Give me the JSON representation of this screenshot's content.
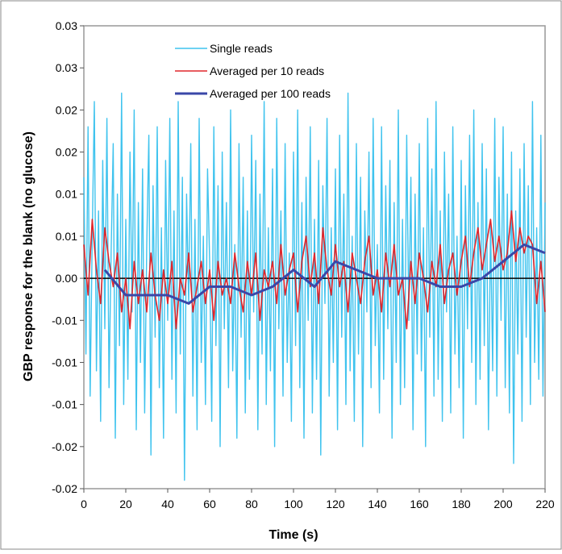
{
  "chart_data": {
    "type": "line",
    "xlabel": "Time (s)",
    "ylabel": "GBP response for the blank (no glucose)",
    "xlim": [
      0,
      220
    ],
    "xticks": [
      0,
      20,
      40,
      60,
      80,
      100,
      120,
      140,
      160,
      180,
      200,
      220
    ],
    "ylim": [
      -0.025,
      0.03
    ],
    "yticks": [
      {
        "value": 0.03,
        "label": "0.03"
      },
      {
        "value": 0.025,
        "label": "0.03"
      },
      {
        "value": 0.02,
        "label": "0.02"
      },
      {
        "value": 0.015,
        "label": "0.02"
      },
      {
        "value": 0.01,
        "label": "0.01"
      },
      {
        "value": 0.005,
        "label": "0.01"
      },
      {
        "value": 0,
        "label": "0.00"
      },
      {
        "value": -0.005,
        "label": "-0.01"
      },
      {
        "value": -0.01,
        "label": "-0.01"
      },
      {
        "value": -0.015,
        "label": "-0.01"
      },
      {
        "value": -0.02,
        "label": "-0.02"
      },
      {
        "value": -0.025,
        "label": "-0.02"
      }
    ],
    "legend": "upper-left",
    "series": [
      {
        "name": "Single reads",
        "color": "#3fc3ee",
        "x": [
          0,
          1,
          2,
          3,
          4,
          5,
          6,
          7,
          8,
          9,
          10,
          11,
          12,
          13,
          14,
          15,
          16,
          17,
          18,
          19,
          20,
          21,
          22,
          23,
          24,
          25,
          26,
          27,
          28,
          29,
          30,
          31,
          32,
          33,
          34,
          35,
          36,
          37,
          38,
          39,
          40,
          41,
          42,
          43,
          44,
          45,
          46,
          47,
          48,
          49,
          50,
          51,
          52,
          53,
          54,
          55,
          56,
          57,
          58,
          59,
          60,
          61,
          62,
          63,
          64,
          65,
          66,
          67,
          68,
          69,
          70,
          71,
          72,
          73,
          74,
          75,
          76,
          77,
          78,
          79,
          80,
          81,
          82,
          83,
          84,
          85,
          86,
          87,
          88,
          89,
          90,
          91,
          92,
          93,
          94,
          95,
          96,
          97,
          98,
          99,
          100,
          101,
          102,
          103,
          104,
          105,
          106,
          107,
          108,
          109,
          110,
          111,
          112,
          113,
          114,
          115,
          116,
          117,
          118,
          119,
          120,
          121,
          122,
          123,
          124,
          125,
          126,
          127,
          128,
          129,
          130,
          131,
          132,
          133,
          134,
          135,
          136,
          137,
          138,
          139,
          140,
          141,
          142,
          143,
          144,
          145,
          146,
          147,
          148,
          149,
          150,
          151,
          152,
          153,
          154,
          155,
          156,
          157,
          158,
          159,
          160,
          161,
          162,
          163,
          164,
          165,
          166,
          167,
          168,
          169,
          170,
          171,
          172,
          173,
          174,
          175,
          176,
          177,
          178,
          179,
          180,
          181,
          182,
          183,
          184,
          185,
          186,
          187,
          188,
          189,
          190,
          191,
          192,
          193,
          194,
          195,
          196,
          197,
          198,
          199,
          200,
          201,
          202,
          203,
          204,
          205,
          206,
          207,
          208,
          209,
          210,
          211,
          212,
          213,
          214,
          215,
          216,
          217,
          218,
          219,
          220
        ],
        "values": [
          0.012,
          -0.009,
          0.018,
          -0.014,
          0.005,
          0.021,
          -0.011,
          0.008,
          -0.017,
          0.014,
          -0.006,
          0.019,
          -0.013,
          0.003,
          0.016,
          -0.019,
          0.01,
          -0.008,
          0.022,
          -0.015,
          0.007,
          -0.012,
          0.015,
          -0.004,
          0.02,
          -0.018,
          0.009,
          -0.01,
          0.013,
          -0.016,
          0.004,
          0.017,
          -0.021,
          0.011,
          -0.007,
          0.018,
          -0.013,
          0.006,
          -0.019,
          0.014,
          -0.005,
          0.019,
          -0.012,
          0.008,
          -0.016,
          0.021,
          -0.009,
          0.012,
          -0.024,
          0.01,
          -0.003,
          0.016,
          -0.014,
          0.007,
          -0.018,
          0.019,
          -0.01,
          0.005,
          -0.015,
          0.013,
          0.002,
          -0.017,
          0.018,
          -0.008,
          0.011,
          -0.02,
          0.015,
          -0.006,
          0.009,
          -0.013,
          0.02,
          -0.011,
          0.004,
          -0.019,
          0.016,
          -0.007,
          0.012,
          -0.016,
          0.008,
          -0.012,
          0.017,
          -0.004,
          0.014,
          -0.018,
          0.01,
          -0.009,
          0.021,
          -0.015,
          0.006,
          -0.011,
          0.013,
          -0.02,
          0.019,
          -0.006,
          0.008,
          -0.014,
          0.016,
          -0.01,
          0.003,
          -0.017,
          0.015,
          -0.008,
          0.02,
          -0.013,
          0.009,
          -0.019,
          0.012,
          -0.005,
          0.018,
          -0.016,
          0.007,
          -0.012,
          0.014,
          -0.021,
          0.011,
          -0.003,
          0.019,
          -0.014,
          0.006,
          -0.01,
          0.013,
          -0.018,
          0.017,
          -0.007,
          0.01,
          -0.015,
          0.022,
          -0.011,
          0.005,
          -0.017,
          0.016,
          -0.009,
          0.012,
          -0.02,
          0.008,
          -0.004,
          0.015,
          -0.013,
          0.019,
          -0.008,
          0.004,
          -0.016,
          0.018,
          -0.012,
          0.011,
          -0.006,
          0.014,
          -0.019,
          0.009,
          -0.01,
          0.02,
          -0.015,
          0.007,
          -0.013,
          0.017,
          -0.005,
          0.012,
          -0.018,
          0.01,
          -0.009,
          0.016,
          -0.011,
          0.006,
          -0.02,
          0.019,
          -0.007,
          0.013,
          -0.014,
          0.021,
          -0.012,
          0.008,
          -0.017,
          0.015,
          -0.004,
          0.01,
          -0.016,
          0.018,
          -0.009,
          0.005,
          -0.013,
          0.014,
          -0.019,
          0.011,
          -0.006,
          0.017,
          -0.01,
          0.02,
          -0.015,
          0.009,
          -0.012,
          0.016,
          -0.008,
          0.013,
          -0.018,
          0.007,
          -0.011,
          0.019,
          -0.014,
          0.012,
          -0.005,
          0.018,
          -0.013,
          0.01,
          -0.016,
          0.015,
          -0.022,
          0.008,
          -0.009,
          0.013,
          -0.017,
          0.016,
          -0.007,
          0.011,
          -0.015,
          0.021,
          -0.01,
          0.006,
          -0.012,
          0.017,
          -0.014,
          0.009
        ]
      },
      {
        "name": "Averaged per 10 reads",
        "color": "#e0262b",
        "x": [
          0,
          2,
          4,
          6,
          8,
          10,
          12,
          14,
          16,
          18,
          20,
          22,
          24,
          26,
          28,
          30,
          32,
          34,
          36,
          38,
          40,
          42,
          44,
          46,
          48,
          50,
          52,
          54,
          56,
          58,
          60,
          62,
          64,
          66,
          68,
          70,
          72,
          74,
          76,
          78,
          80,
          82,
          84,
          86,
          88,
          90,
          92,
          94,
          96,
          98,
          100,
          102,
          104,
          106,
          108,
          110,
          112,
          114,
          116,
          118,
          120,
          122,
          124,
          126,
          128,
          130,
          132,
          134,
          136,
          138,
          140,
          142,
          144,
          146,
          148,
          150,
          152,
          154,
          156,
          158,
          160,
          162,
          164,
          166,
          168,
          170,
          172,
          174,
          176,
          178,
          180,
          182,
          184,
          186,
          188,
          190,
          192,
          194,
          196,
          198,
          200,
          202,
          204,
          206,
          208,
          210,
          212,
          214,
          216,
          218,
          220
        ],
        "values": [
          0.004,
          -0.002,
          0.007,
          0.001,
          -0.003,
          0.006,
          0.002,
          -0.001,
          0.003,
          -0.004,
          0.0,
          -0.006,
          0.002,
          -0.003,
          0.001,
          -0.004,
          0.003,
          -0.002,
          -0.005,
          0.001,
          -0.003,
          0.002,
          -0.006,
          0.0,
          -0.002,
          0.003,
          -0.004,
          -0.001,
          0.002,
          -0.003,
          0.001,
          -0.005,
          0.002,
          -0.002,
          0.0,
          -0.003,
          0.003,
          -0.001,
          -0.004,
          0.002,
          -0.002,
          0.003,
          -0.005,
          0.001,
          -0.001,
          0.002,
          -0.003,
          0.004,
          -0.002,
          0.001,
          0.003,
          -0.004,
          0.002,
          0.005,
          -0.001,
          0.003,
          -0.003,
          0.006,
          0.001,
          -0.002,
          0.004,
          -0.001,
          0.002,
          -0.004,
          0.003,
          0.0,
          -0.003,
          0.002,
          0.005,
          -0.002,
          0.001,
          -0.004,
          0.003,
          -0.001,
          0.004,
          -0.002,
          0.0,
          -0.006,
          0.002,
          -0.003,
          0.003,
          0.0,
          -0.004,
          0.002,
          -0.001,
          0.004,
          -0.003,
          0.001,
          0.003,
          -0.002,
          0.002,
          0.005,
          -0.001,
          0.003,
          0.006,
          0.001,
          0.004,
          0.007,
          0.002,
          0.005,
          0.001,
          0.003,
          0.008,
          0.002,
          0.006,
          0.003,
          0.005,
          0.004,
          -0.003,
          0.002,
          -0.004
        ]
      },
      {
        "name": "Averaged per 100 reads",
        "color": "#3a47a8",
        "x": [
          10,
          20,
          30,
          40,
          50,
          60,
          70,
          80,
          90,
          100,
          110,
          120,
          130,
          140,
          150,
          160,
          170,
          180,
          190,
          200,
          210,
          220
        ],
        "values": [
          0.001,
          -0.002,
          -0.002,
          -0.002,
          -0.003,
          -0.001,
          -0.001,
          -0.002,
          -0.001,
          0.001,
          -0.001,
          0.002,
          0.001,
          0.0,
          0.0,
          0.0,
          -0.001,
          -0.001,
          0.0,
          0.002,
          0.004,
          0.003
        ]
      }
    ]
  }
}
